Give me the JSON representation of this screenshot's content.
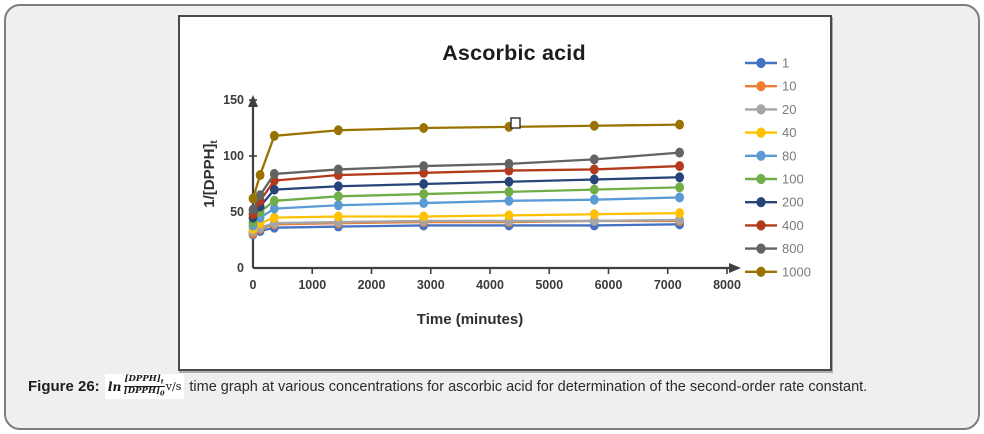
{
  "figure": {
    "caption_label": "Figure 26:",
    "formula": {
      "ln": "ln",
      "numerator": "[DPPH]",
      "numerator_sub": "t",
      "denominator": "[DPPH]",
      "denominator_sub": "0",
      "vs": "v/s"
    },
    "caption_text": "time graph at various concentrations for ascorbic acid for determination of the second-order rate constant."
  },
  "chart_data": {
    "type": "line",
    "title": "Ascorbic acid",
    "xlabel": "Time (minutes)",
    "ylabel": "1/[DPPH]",
    "ylabel_sub": "t",
    "xlim": [
      0,
      8000
    ],
    "ylim": [
      0,
      150
    ],
    "x_ticks": [
      0,
      1000,
      2000,
      3000,
      4000,
      5000,
      6000,
      7000,
      8000
    ],
    "y_ticks": [
      0,
      50,
      100,
      150
    ],
    "grid": false,
    "legend_position": "right",
    "x": [
      0,
      120,
      360,
      1440,
      2880,
      4320,
      5760,
      7200
    ],
    "series": [
      {
        "name": "1",
        "color": "#4472C4",
        "values": [
          30,
          33,
          36,
          37,
          38,
          38,
          38,
          39
        ]
      },
      {
        "name": "10",
        "color": "#ED7D31",
        "values": [
          31,
          35,
          39,
          40,
          41,
          41,
          42,
          42
        ]
      },
      {
        "name": "20",
        "color": "#A5A5A5",
        "values": [
          33,
          36,
          40,
          41,
          42,
          42,
          42,
          43
        ]
      },
      {
        "name": "40",
        "color": "#FFC000",
        "values": [
          35,
          40,
          45,
          46,
          46,
          47,
          48,
          49
        ]
      },
      {
        "name": "80",
        "color": "#5B9BD5",
        "values": [
          38,
          45,
          53,
          56,
          58,
          60,
          61,
          63
        ]
      },
      {
        "name": "100",
        "color": "#70AD47",
        "values": [
          41,
          50,
          60,
          64,
          66,
          68,
          70,
          72
        ]
      },
      {
        "name": "200",
        "color": "#264478",
        "values": [
          45,
          55,
          70,
          73,
          75,
          77,
          79,
          81
        ]
      },
      {
        "name": "400",
        "color": "#B43A1C",
        "values": [
          48,
          60,
          78,
          83,
          85,
          87,
          88,
          91
        ]
      },
      {
        "name": "800",
        "color": "#636363",
        "values": [
          52,
          65,
          84,
          88,
          91,
          93,
          97,
          103
        ]
      },
      {
        "name": "1000",
        "color": "#997300",
        "values": [
          62,
          83,
          118,
          123,
          125,
          126,
          127,
          128
        ]
      }
    ]
  }
}
